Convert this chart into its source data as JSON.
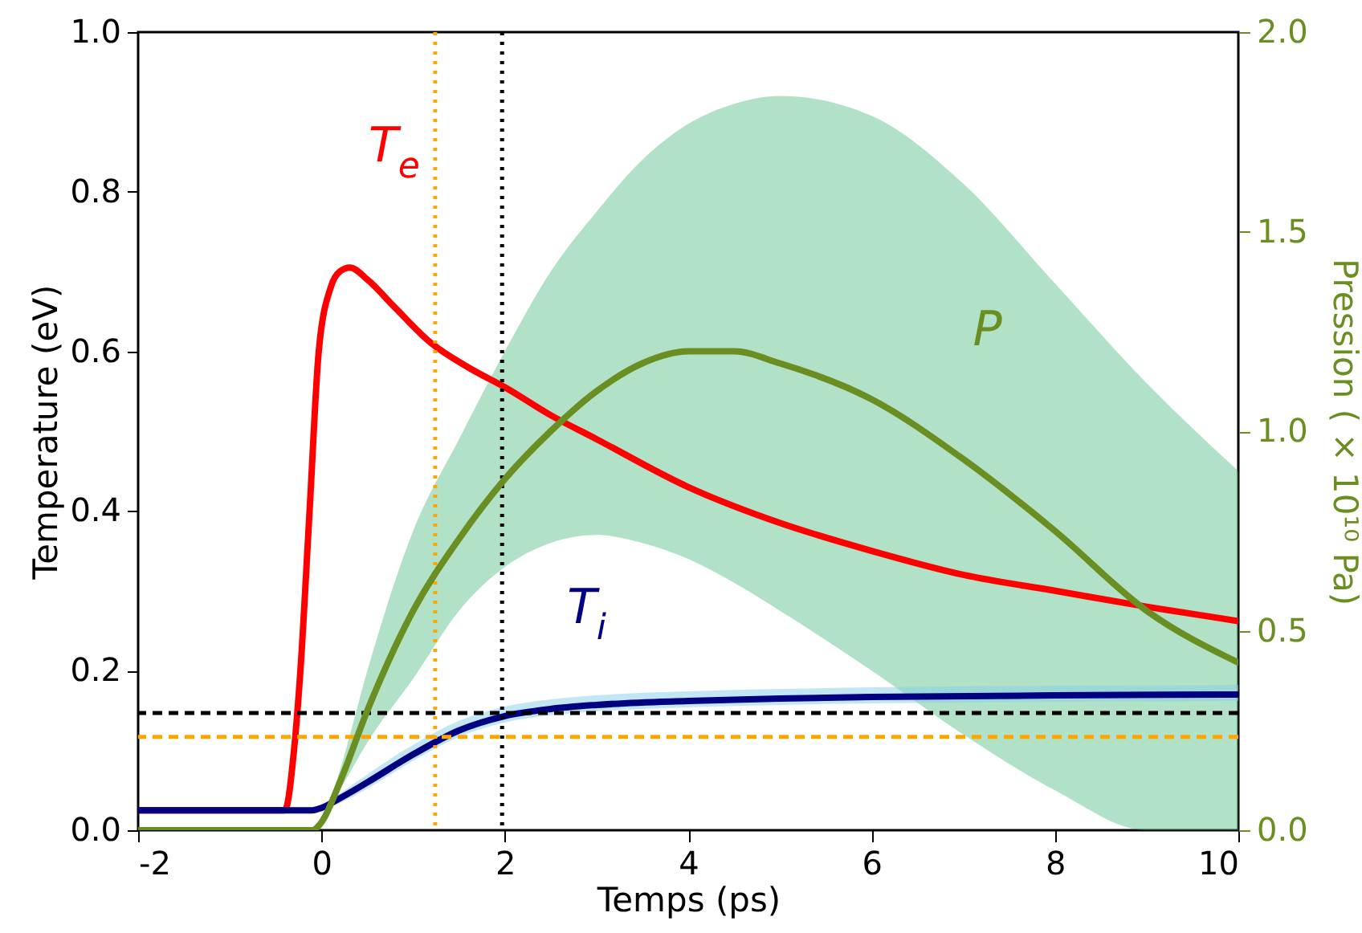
{
  "chart_data": {
    "type": "line",
    "xlabel": "Temps (ps)",
    "ylabel": "Temperature (eV)",
    "y2label": "Pression ( × 10¹⁰ Pa)",
    "xlim": [
      -2,
      10
    ],
    "xticks": [
      -2,
      0,
      2,
      4,
      6,
      8,
      10
    ],
    "ylim": [
      0,
      1
    ],
    "yticks": [
      {
        "value": 0,
        "label": "0.0"
      },
      {
        "value": 0.2,
        "label": "0.2"
      },
      {
        "value": 0.4,
        "label": "0.4"
      },
      {
        "value": 0.6,
        "label": "0.6"
      },
      {
        "value": 0.8,
        "label": "0.8"
      },
      {
        "value": 1,
        "label": "1.0"
      }
    ],
    "y2lim": [
      0,
      2
    ],
    "y2ticks": [
      {
        "value": 0,
        "label": "0.0"
      },
      {
        "value": 0.5,
        "label": "0.5"
      },
      {
        "value": 1,
        "label": "1.0"
      },
      {
        "value": 1.5,
        "label": "1.5"
      },
      {
        "value": 2,
        "label": "2.0"
      }
    ],
    "series": [
      {
        "name": "T$_{e}$",
        "color": "#ff0000",
        "x": [
          -2,
          -0.4,
          -0.3,
          -0.23,
          -0.13,
          -0.03,
          0.1,
          0.2,
          0.31,
          0.5,
          0.8,
          1.2,
          1.6,
          2,
          2.5,
          3,
          4,
          5,
          6,
          7,
          8,
          9,
          10
        ],
        "values": [
          0.025,
          0.025,
          0.1,
          0.2,
          0.4,
          0.6,
          0.68,
          0.7,
          0.705,
          0.69,
          0.655,
          0.61,
          0.58,
          0.555,
          0.52,
          0.49,
          0.43,
          0.385,
          0.35,
          0.32,
          0.3,
          0.28,
          0.262
        ]
      },
      {
        "name": "T$_{i}$",
        "color": "#000080",
        "x": [
          -2,
          -0.1,
          0,
          0.2,
          0.5,
          1,
          1.5,
          2,
          2.5,
          3,
          4,
          5,
          6,
          8,
          10
        ],
        "values": [
          0.025,
          0.025,
          0.028,
          0.04,
          0.06,
          0.095,
          0.125,
          0.143,
          0.152,
          0.157,
          0.162,
          0.165,
          0.167,
          0.169,
          0.17
        ],
        "lower": [
          0.025,
          0.025,
          0.025,
          0.034,
          0.052,
          0.087,
          0.117,
          0.135,
          0.144,
          0.149,
          0.154,
          0.157,
          0.159,
          0.161,
          0.162
        ],
        "upper": [
          0.025,
          0.025,
          0.03,
          0.046,
          0.07,
          0.107,
          0.137,
          0.155,
          0.164,
          0.169,
          0.174,
          0.177,
          0.179,
          0.181,
          0.182
        ]
      },
      {
        "name": "P",
        "color": "#6b8e23",
        "axis": "y2",
        "x": [
          -2,
          -0.1,
          0,
          0.2,
          0.5,
          1,
          1.5,
          2,
          2.5,
          3,
          3.5,
          4,
          4.5,
          5,
          6,
          7,
          8,
          9,
          10
        ],
        "values": [
          0,
          0,
          0.02,
          0.12,
          0.3,
          0.55,
          0.73,
          0.88,
          1.0,
          1.1,
          1.17,
          1.2,
          1.2,
          1.17,
          1.08,
          0.93,
          0.75,
          0.55,
          0.42
        ],
        "lower": [
          0,
          0,
          0.02,
          0.1,
          0.22,
          0.38,
          0.55,
          0.66,
          0.72,
          0.74,
          0.72,
          0.68,
          0.62,
          0.55,
          0.4,
          0.24,
          0.1,
          0,
          0
        ],
        "upper": [
          0,
          0,
          0.02,
          0.15,
          0.4,
          0.75,
          0.98,
          1.2,
          1.4,
          1.55,
          1.68,
          1.77,
          1.82,
          1.84,
          1.79,
          1.62,
          1.37,
          1.12,
          0.9
        ]
      }
    ],
    "ref_lines": [
      {
        "axis": "y",
        "value": 0.147,
        "color": "#000000",
        "line_style": "dashed"
      },
      {
        "axis": "y",
        "value": 0.117,
        "color": "#ffa500",
        "line_style": "dashed"
      },
      {
        "axis": "x",
        "value": 1.24,
        "color": "#ffa500",
        "line_style": "dotted"
      },
      {
        "axis": "x",
        "value": 1.97,
        "color": "#000000",
        "line_style": "dotted"
      }
    ],
    "grid": false,
    "line_style": "solid",
    "marker": "none"
  }
}
